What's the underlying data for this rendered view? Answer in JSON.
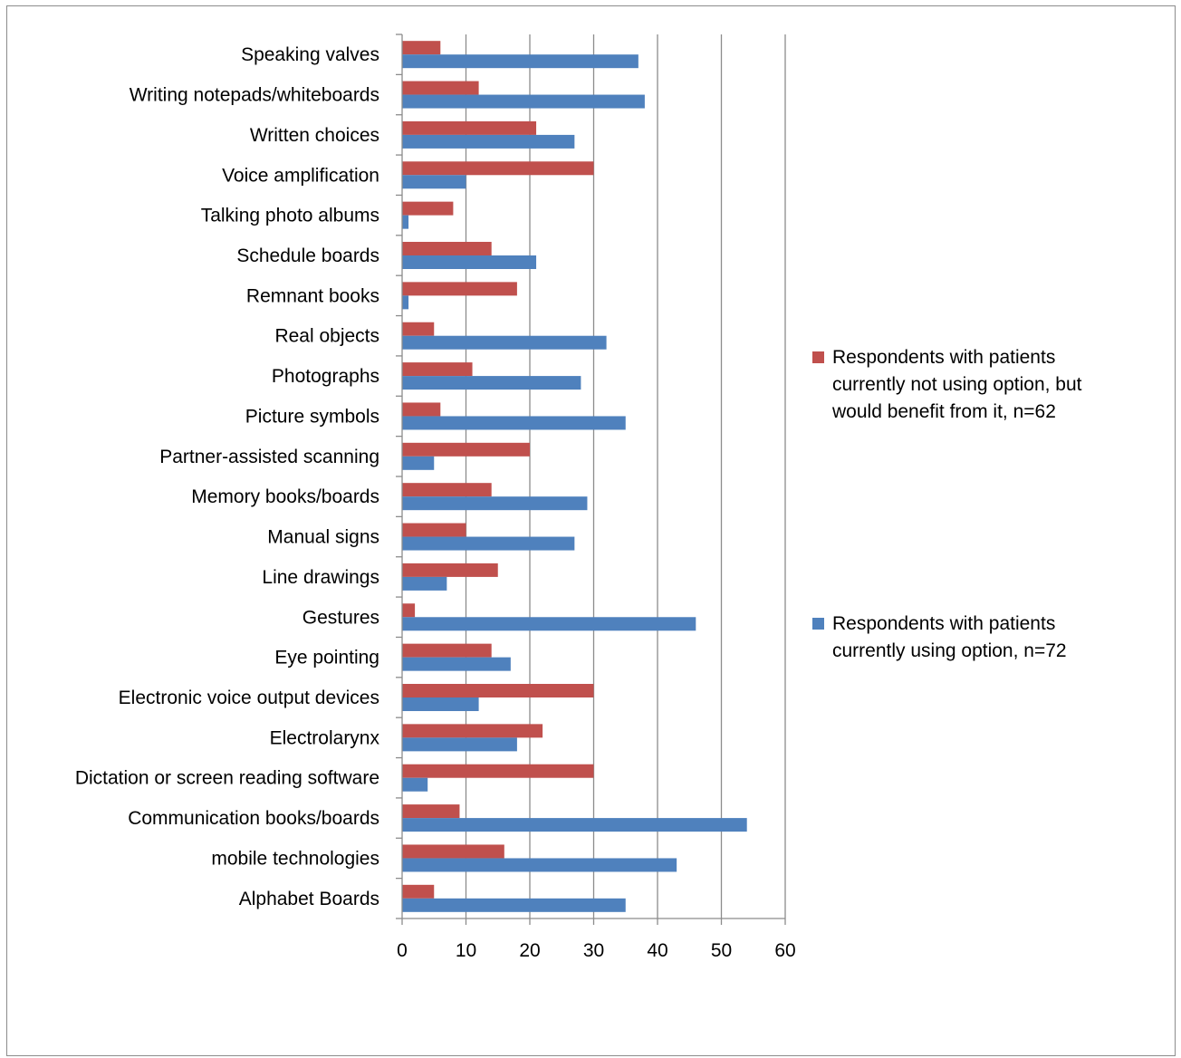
{
  "chart_data": {
    "type": "bar",
    "orientation": "horizontal",
    "title": "",
    "xlabel": "",
    "ylabel": "",
    "xlim": [
      0,
      60
    ],
    "x_ticks": [
      0,
      10,
      20,
      30,
      40,
      50,
      60
    ],
    "grid": "vertical major gridlines",
    "legend_position": "right",
    "categories": [
      "Speaking valves",
      "Writing notepads/whiteboards",
      "Written choices",
      "Voice amplification",
      "Talking photo albums",
      "Schedule boards",
      "Remnant books",
      "Real objects",
      "Photographs",
      "Picture symbols",
      "Partner-assisted scanning",
      "Memory books/boards",
      "Manual signs",
      "Line drawings",
      "Gestures",
      "Eye pointing",
      "Electronic voice output devices",
      "Electrolarynx",
      "Dictation or screen reading software",
      "Communication books/boards",
      "mobile technologies",
      "Alphabet Boards"
    ],
    "series": [
      {
        "name": "Respondents  with patients currently not using option, but would benefit from it, n=62",
        "color": "#c0504d",
        "values": [
          6,
          12,
          21,
          30,
          8,
          14,
          18,
          5,
          11,
          6,
          20,
          14,
          10,
          15,
          2,
          14,
          30,
          22,
          30,
          9,
          16,
          5
        ]
      },
      {
        "name": "Respondents with  patients currently using option, n=72",
        "color": "#4f81bd",
        "values": [
          37,
          38,
          27,
          10,
          1,
          21,
          1,
          32,
          28,
          35,
          5,
          29,
          27,
          7,
          46,
          17,
          12,
          18,
          4,
          54,
          43,
          35
        ]
      }
    ]
  }
}
